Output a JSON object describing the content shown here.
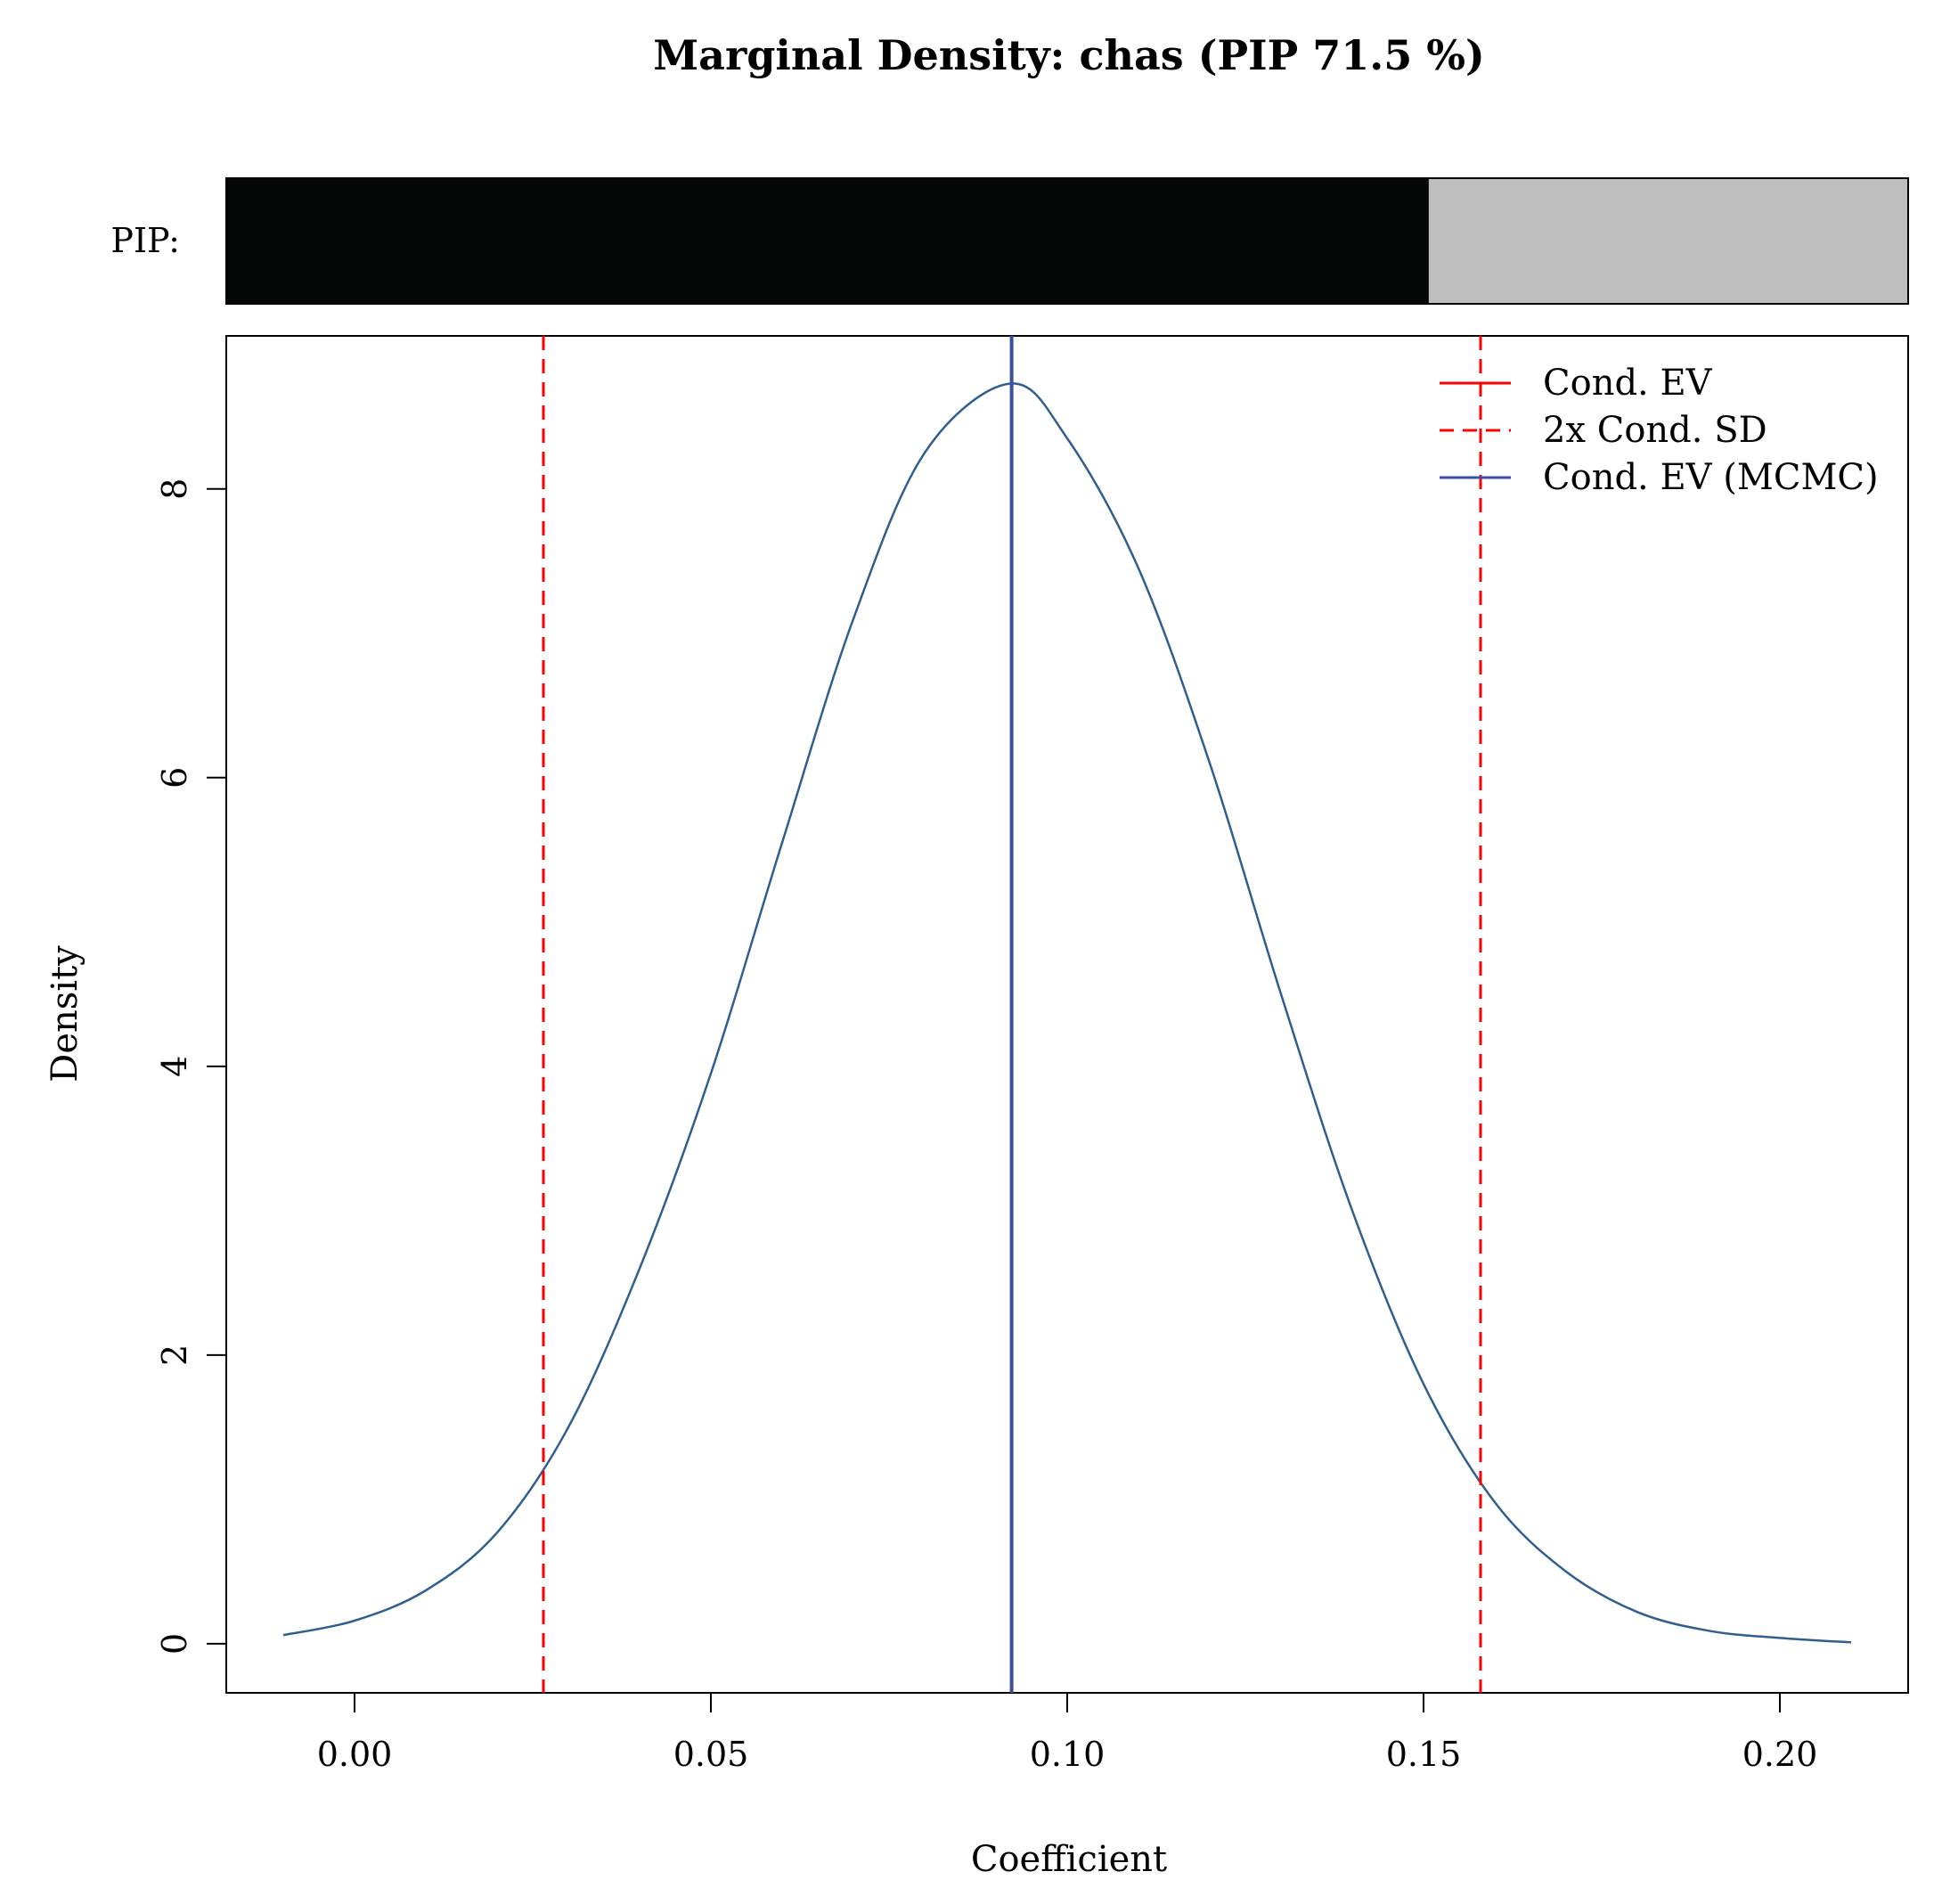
{
  "chart_data": {
    "type": "line",
    "title": "Marginal Density: chas (PIP 71.5 %)",
    "xlabel": "Coefficient",
    "ylabel": "Density",
    "xlim": [
      -0.018,
      0.218
    ],
    "ylim": [
      -0.34,
      9.06
    ],
    "x_ticks": [
      0.0,
      0.05,
      0.1,
      0.15,
      0.2
    ],
    "x_tick_labels": [
      "0.00",
      "0.05",
      "0.10",
      "0.15",
      "0.20"
    ],
    "y_ticks": [
      0,
      2,
      4,
      6,
      8
    ],
    "y_tick_labels": [
      "0",
      "2",
      "4",
      "6",
      "8"
    ],
    "grid": false,
    "pip": {
      "label": "PIP:",
      "value": 0.715,
      "filled_color": "#050606",
      "remainder_color": "#bebebe"
    },
    "density": {
      "x": [
        -0.01,
        0.0,
        0.01,
        0.02,
        0.03,
        0.04,
        0.05,
        0.06,
        0.07,
        0.08,
        0.092,
        0.1,
        0.11,
        0.12,
        0.13,
        0.14,
        0.15,
        0.16,
        0.17,
        0.18,
        0.19,
        0.2,
        0.21
      ],
      "y": [
        0.06,
        0.16,
        0.37,
        0.77,
        1.5,
        2.6,
        3.95,
        5.55,
        7.1,
        8.25,
        8.73,
        8.35,
        7.45,
        6.1,
        4.5,
        3.0,
        1.8,
        0.98,
        0.5,
        0.22,
        0.09,
        0.04,
        0.01
      ],
      "color": "#2f5e8f"
    },
    "vlines": [
      {
        "x": 0.0265,
        "style": "dashed",
        "color": "#ff0000"
      },
      {
        "x": 0.158,
        "style": "dashed",
        "color": "#ff0000"
      },
      {
        "x": 0.0922,
        "style": "solid",
        "color": "#3b4fa0"
      }
    ],
    "legend": {
      "position": "top-right",
      "entries": [
        {
          "label": "Cond. EV",
          "style": "solid",
          "color": "#ff0000"
        },
        {
          "label": "2x Cond. SD",
          "style": "dashed",
          "color": "#ff0000"
        },
        {
          "label": "Cond. EV (MCMC)",
          "style": "solid",
          "color": "#3b4fa0"
        }
      ]
    }
  }
}
